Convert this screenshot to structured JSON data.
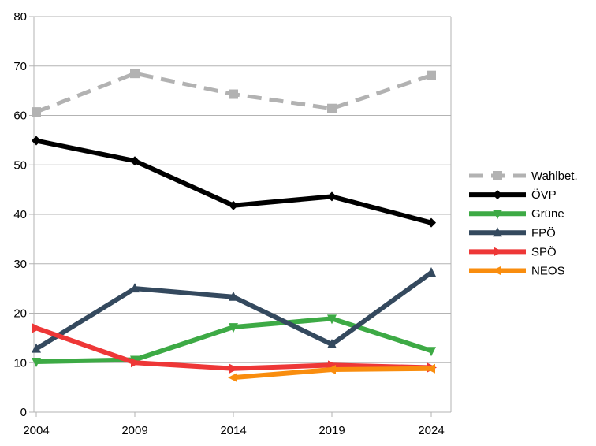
{
  "chart_data": {
    "type": "line",
    "title": "",
    "xlabel": "",
    "ylabel": "",
    "x": [
      "2004",
      "2009",
      "2014",
      "2019",
      "2024"
    ],
    "ylim": [
      0,
      80
    ],
    "yticks": [
      "0",
      "10",
      "20",
      "30",
      "40",
      "50",
      "60",
      "70",
      "80"
    ],
    "grid": true,
    "legend": "right",
    "series": [
      {
        "name": "Wahlbet.",
        "color": "#b2b2b2",
        "dashed": true,
        "marker": "square",
        "values": [
          60.7,
          68.5,
          64.3,
          61.4,
          68.1
        ]
      },
      {
        "name": "ÖVP",
        "color": "#000000",
        "dashed": false,
        "marker": "diamond",
        "values": [
          54.9,
          50.8,
          41.8,
          43.6,
          38.3
        ]
      },
      {
        "name": "Grüne",
        "color": "#3daa45",
        "dashed": false,
        "marker": "triangle-down",
        "values": [
          10.2,
          10.6,
          17.2,
          18.9,
          12.4
        ]
      },
      {
        "name": "FPÖ",
        "color": "#34495e",
        "dashed": false,
        "marker": "triangle-up",
        "values": [
          12.8,
          25.0,
          23.3,
          13.7,
          28.2
        ]
      },
      {
        "name": "SPÖ",
        "color": "#ee3737",
        "dashed": false,
        "marker": "triangle-right",
        "values": [
          17.0,
          10.0,
          8.8,
          9.5,
          9.0
        ]
      },
      {
        "name": "NEOS",
        "color": "#f98d0e",
        "dashed": false,
        "marker": "triangle-left",
        "values": [
          null,
          null,
          7.0,
          8.6,
          8.8
        ]
      }
    ]
  }
}
